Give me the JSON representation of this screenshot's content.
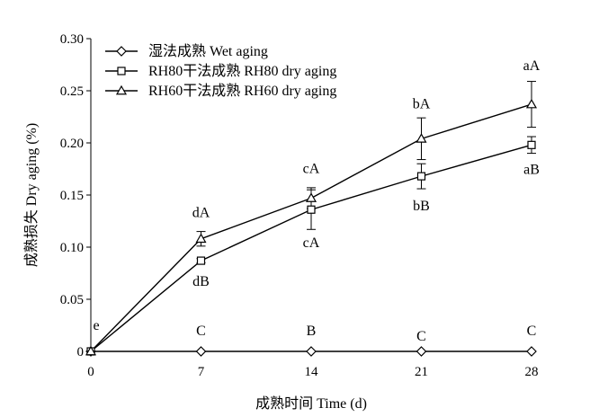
{
  "chart_data": {
    "type": "line",
    "xlabel": "成熟时间 Time (d)",
    "ylabel": "成熟损失 Dry aging (%)",
    "x": [
      0,
      7,
      14,
      21,
      28
    ],
    "xlim": [
      0,
      28
    ],
    "ylim": [
      0,
      0.3
    ],
    "x_ticks": [
      "0",
      "7",
      "14",
      "21",
      "28"
    ],
    "y_ticks": [
      "0",
      "0.05",
      "0.10",
      "0.15",
      "0.20",
      "0.25",
      "0.30"
    ],
    "legend_position": "top-left",
    "series": [
      {
        "name": "湿法成熟 Wet aging",
        "marker": "diamond",
        "values": [
          0,
          0,
          0,
          0,
          0
        ],
        "errors": [
          0,
          0,
          0,
          0,
          0
        ],
        "labels": [
          "e",
          "C",
          "B",
          "C",
          "C"
        ]
      },
      {
        "name": "RH80干法成熟  RH80 dry aging",
        "marker": "square",
        "values": [
          0,
          0.087,
          0.136,
          0.168,
          0.198
        ],
        "errors": [
          0,
          0.002,
          0.019,
          0.012,
          0.008
        ],
        "labels": [
          "",
          "dB",
          "cA",
          "bB",
          "aB"
        ]
      },
      {
        "name": "RH60干法成熟  RH60 dry aging",
        "marker": "triangle",
        "values": [
          0,
          0.108,
          0.147,
          0.204,
          0.237
        ],
        "errors": [
          0,
          0.007,
          0.01,
          0.02,
          0.022
        ],
        "labels": [
          "",
          "dA",
          "cA",
          "bA",
          "aA"
        ]
      }
    ]
  }
}
